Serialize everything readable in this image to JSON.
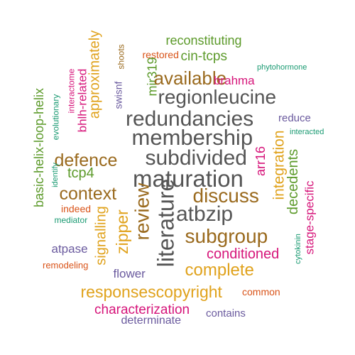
{
  "palette": {
    "gray": "#555555",
    "brown": "#9a6a1e",
    "green": "#5c9a2a",
    "magenta": "#d6157a",
    "purple": "#6a5a9e",
    "orange": "#d9541a",
    "teal": "#1a9a72",
    "gold": "#e0a21c"
  },
  "words": [
    {
      "text": "reconstituting",
      "color": "green",
      "weight": 18,
      "orientation": "horizontal"
    },
    {
      "text": "restored",
      "color": "orange",
      "weight": 14,
      "orientation": "horizontal"
    },
    {
      "text": "cin-tcps",
      "color": "green",
      "weight": 19,
      "orientation": "horizontal"
    },
    {
      "text": "phytohormone",
      "color": "teal",
      "weight": 11,
      "orientation": "horizontal"
    },
    {
      "text": "approximately",
      "color": "gold",
      "weight": 20,
      "orientation": "vertical"
    },
    {
      "text": "shoots",
      "color": "brown",
      "weight": 12,
      "orientation": "vertical"
    },
    {
      "text": "mir319",
      "color": "green",
      "weight": 18,
      "orientation": "vertical"
    },
    {
      "text": "available",
      "color": "brown",
      "weight": 26,
      "orientation": "horizontal"
    },
    {
      "text": "brahma",
      "color": "magenta",
      "weight": 17,
      "orientation": "horizontal"
    },
    {
      "text": "regionleucine",
      "color": "gray",
      "weight": 28,
      "orientation": "horizontal"
    },
    {
      "text": "bhlh-related",
      "color": "magenta",
      "weight": 17,
      "orientation": "vertical"
    },
    {
      "text": "interactome",
      "color": "magenta",
      "weight": 12,
      "orientation": "vertical"
    },
    {
      "text": "swisnf",
      "color": "purple",
      "weight": 14,
      "orientation": "vertical"
    },
    {
      "text": "basic-helix-loop-helix",
      "color": "green",
      "weight": 18,
      "orientation": "vertical"
    },
    {
      "text": "evolutionary",
      "color": "teal",
      "weight": 12,
      "orientation": "vertical"
    },
    {
      "text": "redundancies",
      "color": "gray",
      "weight": 30,
      "orientation": "horizontal"
    },
    {
      "text": "reduce",
      "color": "purple",
      "weight": 15,
      "orientation": "horizontal"
    },
    {
      "text": "interacted",
      "color": "teal",
      "weight": 11,
      "orientation": "horizontal"
    },
    {
      "text": "membership",
      "color": "gray",
      "weight": 31,
      "orientation": "horizontal"
    },
    {
      "text": "defence",
      "color": "brown",
      "weight": 25,
      "orientation": "horizontal"
    },
    {
      "text": "subdivided",
      "color": "gray",
      "weight": 30,
      "orientation": "horizontal"
    },
    {
      "text": "arr16",
      "color": "magenta",
      "weight": 18,
      "orientation": "vertical"
    },
    {
      "text": "integration",
      "color": "gold",
      "weight": 21,
      "orientation": "vertical"
    },
    {
      "text": "decedents",
      "color": "green",
      "weight": 20,
      "orientation": "vertical"
    },
    {
      "text": "tcp4",
      "color": "green",
      "weight": 20,
      "orientation": "horizontal"
    },
    {
      "text": "identify",
      "color": "teal",
      "weight": 11,
      "orientation": "vertical"
    },
    {
      "text": "maturation",
      "color": "gray",
      "weight": 33,
      "orientation": "horizontal"
    },
    {
      "text": "context",
      "color": "brown",
      "weight": 25,
      "orientation": "horizontal"
    },
    {
      "text": "review",
      "color": "brown",
      "weight": 28,
      "orientation": "vertical"
    },
    {
      "text": "literature",
      "color": "gray",
      "weight": 32,
      "orientation": "vertical"
    },
    {
      "text": "discuss",
      "color": "brown",
      "weight": 28,
      "orientation": "horizontal"
    },
    {
      "text": "stage-specific",
      "color": "magenta",
      "weight": 17,
      "orientation": "vertical"
    },
    {
      "text": "indeed",
      "color": "orange",
      "weight": 14,
      "orientation": "horizontal"
    },
    {
      "text": "signalling",
      "color": "gold",
      "weight": 20,
      "orientation": "vertical"
    },
    {
      "text": "zipper",
      "color": "gold",
      "weight": 23,
      "orientation": "vertical"
    },
    {
      "text": "atbzip",
      "color": "gray",
      "weight": 30,
      "orientation": "horizontal"
    },
    {
      "text": "mediator",
      "color": "teal",
      "weight": 12,
      "orientation": "horizontal"
    },
    {
      "text": "subgroup",
      "color": "brown",
      "weight": 28,
      "orientation": "horizontal"
    },
    {
      "text": "atpase",
      "color": "purple",
      "weight": 17,
      "orientation": "horizontal"
    },
    {
      "text": "conditioned",
      "color": "magenta",
      "weight": 20,
      "orientation": "horizontal"
    },
    {
      "text": "remodeling",
      "color": "orange",
      "weight": 13,
      "orientation": "horizontal"
    },
    {
      "text": "complete",
      "color": "gold",
      "weight": 24,
      "orientation": "horizontal"
    },
    {
      "text": "cytokinin",
      "color": "teal",
      "weight": 11,
      "orientation": "vertical"
    },
    {
      "text": "flower",
      "color": "purple",
      "weight": 17,
      "orientation": "horizontal"
    },
    {
      "text": "responsescopyright",
      "color": "gold",
      "weight": 23,
      "orientation": "horizontal"
    },
    {
      "text": "common",
      "color": "orange",
      "weight": 14,
      "orientation": "horizontal"
    },
    {
      "text": "characterization",
      "color": "magenta",
      "weight": 19,
      "orientation": "horizontal"
    },
    {
      "text": "contains",
      "color": "purple",
      "weight": 15,
      "orientation": "horizontal"
    },
    {
      "text": "determinate",
      "color": "purple",
      "weight": 16,
      "orientation": "horizontal"
    }
  ]
}
